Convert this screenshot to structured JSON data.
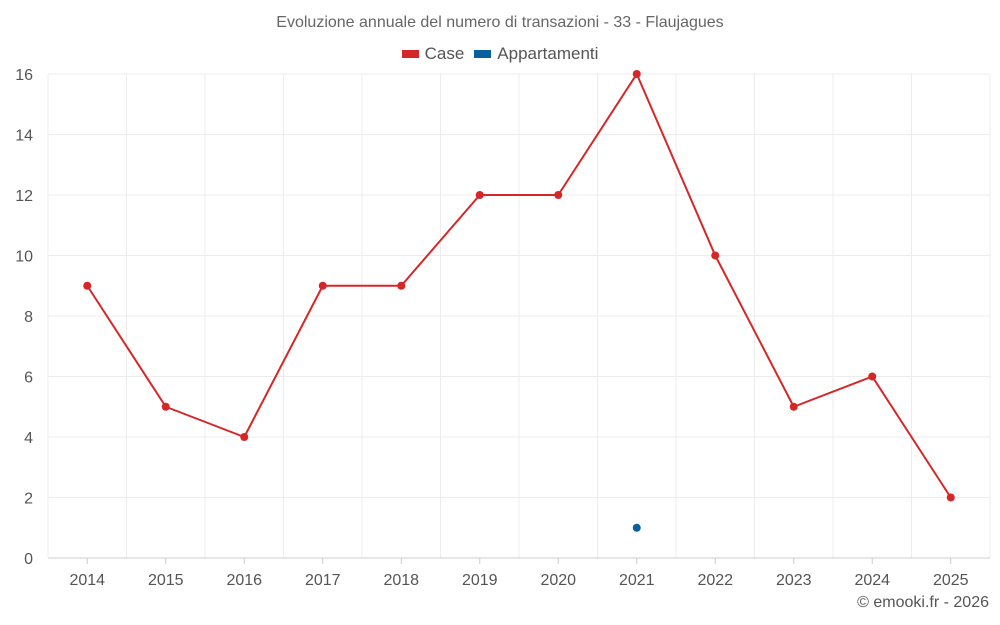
{
  "chart_data": {
    "type": "line",
    "title": "Evoluzione annuale del numero di transazioni - 33 - Flaujagues",
    "categories": [
      "2014",
      "2015",
      "2016",
      "2017",
      "2018",
      "2019",
      "2020",
      "2021",
      "2022",
      "2023",
      "2024",
      "2025"
    ],
    "series": [
      {
        "name": "Case",
        "color": "#d62728",
        "values": [
          9,
          5,
          4,
          9,
          9,
          12,
          12,
          16,
          10,
          5,
          6,
          2
        ]
      },
      {
        "name": "Appartamenti",
        "color": "#08619c",
        "values": [
          null,
          null,
          null,
          null,
          null,
          null,
          null,
          1,
          null,
          null,
          null,
          null
        ]
      }
    ],
    "yticks": [
      "0",
      "2",
      "4",
      "6",
      "8",
      "10",
      "12",
      "14",
      "16"
    ],
    "ylim": [
      0,
      16
    ],
    "xlabel": "",
    "ylabel": "",
    "grid": true,
    "legend_position": "top-center"
  },
  "credit": "© emooki.fr - 2026"
}
